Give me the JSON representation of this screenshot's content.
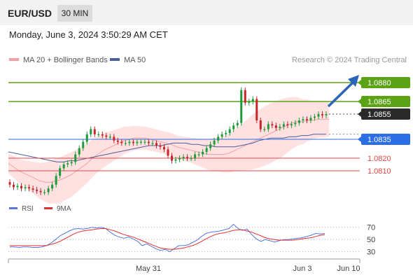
{
  "header": {
    "pair": "EUR/USD",
    "timeframe": "30 MIN"
  },
  "datetime": "Monday, June 3, 2024 3:50:29 AM CET",
  "legend": {
    "ma20_label": "MA 20 + Bollinger Bands",
    "ma50_label": "MA 50",
    "credit": "Research © 2024 Trading Central"
  },
  "rsi_legend": {
    "rsi_label": "RSI",
    "ma_label": "9MA"
  },
  "colors": {
    "up": "#1f9a3a",
    "down": "#c8252b",
    "ma20": "#f3a0a0",
    "band": "#ffe1e1",
    "ma50": "#4a5f9e",
    "green_level": "#5ba314",
    "blue_level": "#2b6ee6",
    "red_level": "#e64646",
    "current": "#2a2a2a",
    "arrow": "#2b64b8",
    "rsi": "#5577d9",
    "rsi_ma": "#e03030"
  },
  "chart_data": [
    {
      "type": "candlestick",
      "x_labels": [
        "May 31",
        "Jun 3",
        "Jun 10"
      ],
      "ylim": [
        1.079,
        1.089
      ],
      "current_price": "1.0855",
      "levels": [
        {
          "label": "1.0880",
          "value": 1.088,
          "kind": "resistance"
        },
        {
          "label": "1.0865",
          "value": 1.0865,
          "kind": "resistance"
        },
        {
          "label": "1.0835",
          "value": 1.0835,
          "kind": "pivot"
        },
        {
          "label": "1.0820",
          "value": 1.082,
          "kind": "support"
        },
        {
          "label": "1.0810",
          "value": 1.081,
          "kind": "support"
        }
      ],
      "closes": [
        1.0799,
        1.0797,
        1.0798,
        1.0796,
        1.0797,
        1.0796,
        1.0795,
        1.0794,
        1.0793,
        1.0793,
        1.0796,
        1.0799,
        1.0806,
        1.0812,
        1.0815,
        1.0816,
        1.0817,
        1.0823,
        1.0828,
        1.0833,
        1.0839,
        1.0843,
        1.0839,
        1.0839,
        1.0838,
        1.0837,
        1.0837,
        1.0834,
        1.0833,
        1.0832,
        1.0832,
        1.0833,
        1.0832,
        1.0833,
        1.0833,
        1.0833,
        1.0832,
        1.0832,
        1.083,
        1.0829,
        1.0827,
        1.0822,
        1.0818,
        1.0819,
        1.082,
        1.0821,
        1.082,
        1.082,
        1.0823,
        1.0823,
        1.0825,
        1.0828,
        1.0831,
        1.0834,
        1.0837,
        1.0839,
        1.084,
        1.0843,
        1.0846,
        1.0848,
        1.0874,
        1.0864,
        1.0865,
        1.0867,
        1.085,
        1.0843,
        1.0843,
        1.0847,
        1.0846,
        1.0844,
        1.0845,
        1.0847,
        1.0846,
        1.0847,
        1.0848,
        1.085,
        1.0851,
        1.085,
        1.0852,
        1.0853,
        1.0855,
        1.0854,
        1.0855
      ],
      "ma20": [
        1.0816,
        1.0813,
        1.081,
        1.0808,
        1.0806,
        1.0804,
        1.0802,
        1.0801,
        1.0801,
        1.0802,
        1.0803,
        1.0805,
        1.0807,
        1.081,
        1.0813,
        1.0816,
        1.082,
        1.0823,
        1.0826,
        1.0828,
        1.083,
        1.0832,
        1.0834,
        1.0835,
        1.0836,
        1.0836,
        1.0836,
        1.0835,
        1.0834,
        1.0833,
        1.0832,
        1.0831,
        1.0829,
        1.0828,
        1.0827,
        1.0826,
        1.0825,
        1.0824,
        1.0823,
        1.0823,
        1.0823,
        1.0823,
        1.0824,
        1.0826,
        1.0828,
        1.083,
        1.0832,
        1.0834,
        1.0836,
        1.0838,
        1.084,
        1.0842,
        1.0844,
        1.0846,
        1.0848,
        1.0849,
        1.0849,
        1.085,
        1.085,
        1.0851,
        1.0851,
        1.0851
      ],
      "ma50": [
        1.0825,
        1.0824,
        1.0823,
        1.0822,
        1.0821,
        1.082,
        1.0819,
        1.0818,
        1.0817,
        1.0817,
        1.0818,
        1.0818,
        1.0819,
        1.082,
        1.0821,
        1.0822,
        1.0823,
        1.0824,
        1.0825,
        1.0826,
        1.0827,
        1.0828,
        1.0829,
        1.083,
        1.083,
        1.083,
        1.0831,
        1.0832,
        1.0832,
        1.0832,
        1.0831,
        1.0831,
        1.083,
        1.083,
        1.0829,
        1.0829,
        1.0829,
        1.0829,
        1.083,
        1.0831,
        1.0832,
        1.0834,
        1.0835,
        1.0836,
        1.0836,
        1.0836,
        1.0837,
        1.0837,
        1.0838,
        1.0838,
        1.0839,
        1.0839,
        1.0839
      ],
      "band_width": [
        0.0008,
        0.001,
        0.0014,
        0.0018,
        0.0018,
        0.0016,
        0.0014,
        0.0012,
        0.001,
        0.0009,
        0.0009,
        0.0009,
        0.001,
        0.0012,
        0.0014,
        0.0017,
        0.0022,
        0.0024,
        0.0023,
        0.0019,
        0.0015,
        0.0014
      ]
    },
    {
      "type": "line",
      "title": "RSI",
      "yticks": [
        30,
        50,
        70
      ],
      "rsi": [
        38,
        38,
        37,
        38,
        38,
        37,
        37,
        38,
        40,
        44,
        50,
        56,
        60,
        64,
        67,
        68,
        67,
        68,
        70,
        69,
        70,
        68,
        62,
        57,
        54,
        52,
        54,
        51,
        47,
        40,
        43,
        39,
        35,
        32,
        34,
        30,
        35,
        40,
        40,
        41,
        45,
        49,
        55,
        60,
        62,
        63,
        64,
        66,
        68,
        75,
        68,
        65,
        67,
        58,
        51,
        47,
        50,
        48,
        46,
        48,
        50,
        50,
        51,
        52,
        53,
        55,
        57,
        60,
        59,
        60
      ],
      "rsi_ma": [
        40,
        40,
        40,
        40,
        40,
        40,
        40,
        40,
        40,
        42,
        44,
        47,
        51,
        55,
        59,
        62,
        64,
        65,
        66,
        67,
        68,
        68,
        66,
        64,
        61,
        58,
        56,
        54,
        51,
        48,
        45,
        42,
        39,
        36,
        35,
        34,
        34,
        35,
        36,
        38,
        40,
        43,
        47,
        51,
        55,
        58,
        60,
        61,
        63,
        65,
        66,
        66,
        64,
        62,
        59,
        56,
        53,
        51,
        50,
        49,
        49,
        49,
        49,
        50,
        51,
        52,
        53,
        55,
        57,
        58
      ]
    }
  ]
}
